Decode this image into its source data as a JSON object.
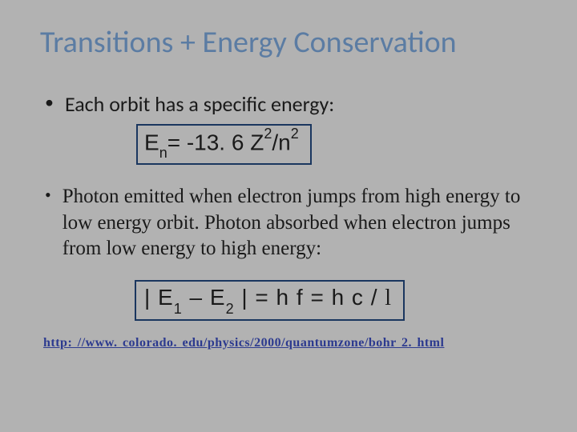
{
  "slide": {
    "title": "Transitions + Energy Conservation",
    "bullet1": "Each orbit has a specific energy:",
    "formula1": {
      "parts": [
        "E",
        "n",
        "= -13. 6 Z",
        "2",
        "/n",
        "2"
      ],
      "border_color": "#1a365f",
      "font_family": "Arial",
      "font_size": 28
    },
    "bullet2": "Photon emitted when electron jumps from high energy to low energy orbit.  Photon absorbed when electron jumps from low energy to high energy:",
    "formula2": {
      "parts": [
        "| E",
        "1",
        " – E",
        "2",
        " | = h f = h c / ",
        "l"
      ],
      "border_color": "#1a365f",
      "font_family": "Arial",
      "font_size": 28
    },
    "link_text": "http: //www. colorado. edu/physics/2000/quantumzone/bohr 2. html",
    "colors": {
      "background": "#b2b2b2",
      "title": "#5b7ca3",
      "text": "#1a1a1a",
      "link": "#2c3a8f",
      "box_border": "#1a365f"
    },
    "typography": {
      "title_font": "Calibri",
      "title_size": 38,
      "bullet_sans_size": 26,
      "bullet_serif_size": 25,
      "formula_size": 28,
      "link_size": 16
    }
  }
}
